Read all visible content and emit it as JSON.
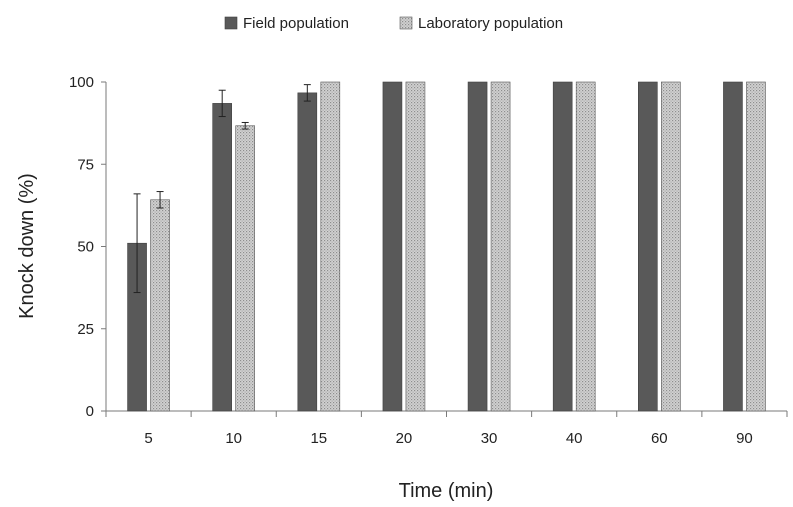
{
  "chart_data": {
    "type": "bar",
    "xlabel": "Time (min)",
    "ylabel": "Knock down (%)",
    "ylim": [
      0,
      100
    ],
    "yticks": [
      "0",
      "25",
      "50",
      "75",
      "100"
    ],
    "categories": [
      "5",
      "10",
      "15",
      "20",
      "30",
      "40",
      "60",
      "90"
    ],
    "legend_position": "top-center",
    "grid": false,
    "series": [
      {
        "name": "Field population",
        "color": "#595959",
        "pattern": "solid",
        "values": [
          51,
          93.5,
          96.7,
          100,
          100,
          100,
          100,
          100
        ],
        "errors": [
          15,
          4,
          2.5,
          0,
          0,
          0,
          0,
          0
        ]
      },
      {
        "name": "Laboratory population",
        "color": "#c0c0c0",
        "pattern": "dotted",
        "values": [
          64.2,
          86.7,
          100,
          100,
          100,
          100,
          100,
          100
        ],
        "errors": [
          2.5,
          1,
          0,
          0,
          0,
          0,
          0,
          0
        ]
      }
    ]
  }
}
